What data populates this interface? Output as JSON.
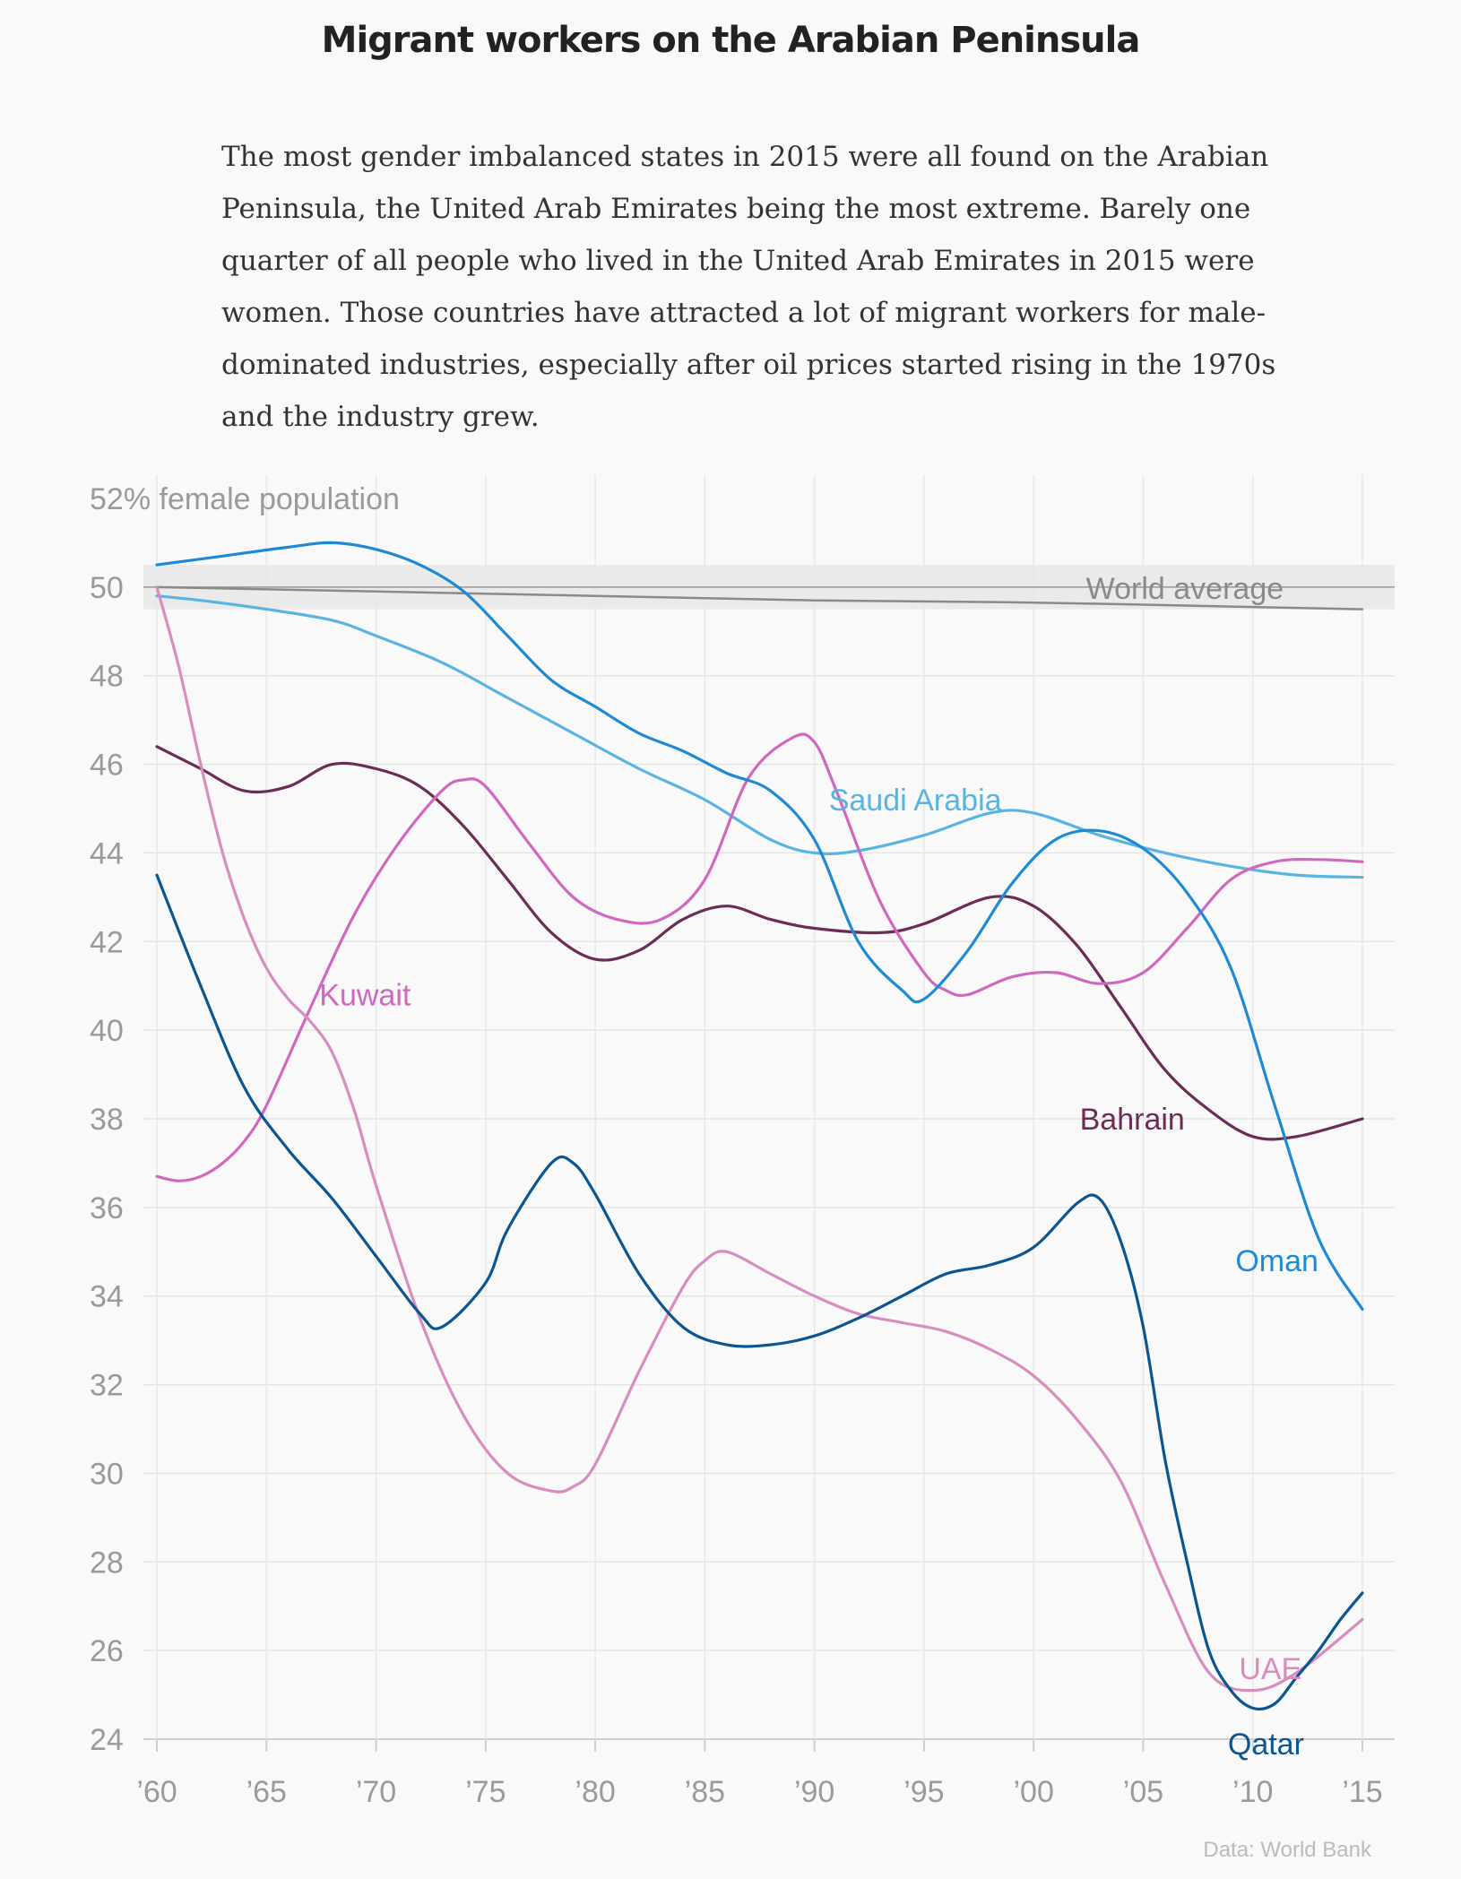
{
  "chart_data": {
    "type": "line",
    "title": "Migrant workers on the Arabian Peninsula",
    "subtitle": "The most gender imbalanced states in 2015 were all found on the Arabian Peninsula, the United Arab Emirates being the most extreme. Barely one quarter of all people who lived in the United Arab Emirates in 2015 were women. Those countries have attracted a lot of migrant workers for male-dominated industries, especially after oil prices started rising in the 1970s and the industry grew.",
    "ylabel": "52% female population",
    "source": "Data: World Bank",
    "ylim": [
      24,
      52
    ],
    "xlim": [
      1960,
      2015
    ],
    "y_ticks": [
      "52% female population",
      "50",
      "48",
      "46",
      "44",
      "42",
      "40",
      "38",
      "36",
      "34",
      "32",
      "30",
      "28",
      "26",
      "24"
    ],
    "x_ticks": [
      "’60",
      "’65",
      "’70",
      "’75",
      "’80",
      "’85",
      "’90",
      "’95",
      "’00",
      "’05",
      "’10",
      "’15"
    ],
    "grid": true,
    "band": {
      "label": "World average",
      "from": 49.5,
      "to": 50.5
    },
    "colors": {
      "world": "#8a8a8a",
      "saudi": "#5ab4e2",
      "oman": "#1f8ad4",
      "kuwait": "#d068c0",
      "bahrain": "#6b2d55",
      "qatar": "#0b5591",
      "uae": "#d88dbf"
    },
    "series": [
      {
        "key": "world",
        "name": "World average",
        "color": "#8a8a8a",
        "x": [
          1960,
          1970,
          1980,
          1990,
          2000,
          2010,
          2015
        ],
        "y": [
          50.0,
          49.9,
          49.8,
          49.7,
          49.65,
          49.55,
          49.5
        ]
      },
      {
        "key": "saudi",
        "name": "Saudi Arabia",
        "color": "#5ab4e2",
        "x": [
          1960,
          1962,
          1965,
          1968,
          1970,
          1973,
          1976,
          1979,
          1982,
          1985,
          1988,
          1990,
          1992,
          1995,
          1998,
          2000,
          2003,
          2006,
          2009,
          2012,
          2015
        ],
        "y": [
          49.8,
          49.7,
          49.5,
          49.25,
          48.9,
          48.3,
          47.5,
          46.7,
          45.9,
          45.2,
          44.3,
          44.0,
          44.05,
          44.4,
          44.9,
          44.9,
          44.4,
          44.0,
          43.7,
          43.5,
          43.45
        ]
      },
      {
        "key": "oman",
        "name": "Oman",
        "color": "#1f8ad4",
        "x": [
          1960,
          1963,
          1966,
          1968,
          1970,
          1972,
          1974,
          1976,
          1978,
          1980,
          1982,
          1984,
          1986,
          1988,
          1990,
          1992,
          1994,
          1995,
          1997,
          1999,
          2001,
          2003,
          2005,
          2007,
          2009,
          2011,
          2013,
          2015
        ],
        "y": [
          50.5,
          50.7,
          50.9,
          51.0,
          50.85,
          50.5,
          49.9,
          48.9,
          47.9,
          47.3,
          46.7,
          46.3,
          45.8,
          45.4,
          44.3,
          42.0,
          40.9,
          40.7,
          41.8,
          43.3,
          44.3,
          44.5,
          44.1,
          43.1,
          41.4,
          38.3,
          35.3,
          33.7
        ]
      },
      {
        "key": "kuwait",
        "name": "Kuwait",
        "color": "#d068c0",
        "x": [
          1960,
          1961,
          1962,
          1963,
          1964,
          1965,
          1967,
          1969,
          1971,
          1973,
          1974,
          1975,
          1977,
          1979,
          1981,
          1983,
          1985,
          1987,
          1989,
          1990,
          1991,
          1993,
          1995,
          1996,
          1997,
          1999,
          2001,
          2003,
          2005,
          2007,
          2009,
          2011,
          2013,
          2015
        ],
        "y": [
          36.7,
          36.6,
          36.7,
          37.0,
          37.5,
          38.3,
          40.5,
          42.6,
          44.2,
          45.4,
          45.65,
          45.5,
          44.2,
          43.0,
          42.5,
          42.5,
          43.4,
          45.7,
          46.6,
          46.5,
          45.4,
          42.9,
          41.3,
          40.9,
          40.8,
          41.2,
          41.3,
          41.05,
          41.3,
          42.3,
          43.4,
          43.8,
          43.85,
          43.8
        ]
      },
      {
        "key": "bahrain",
        "name": "Bahrain",
        "color": "#6b2d55",
        "x": [
          1960,
          1962,
          1964,
          1966,
          1968,
          1970,
          1972,
          1974,
          1976,
          1978,
          1980,
          1982,
          1984,
          1986,
          1988,
          1990,
          1993,
          1995,
          1998,
          2000,
          2002,
          2004,
          2006,
          2008,
          2010,
          2012,
          2015
        ],
        "y": [
          46.4,
          45.9,
          45.4,
          45.5,
          46.0,
          45.9,
          45.5,
          44.6,
          43.4,
          42.2,
          41.6,
          41.8,
          42.5,
          42.8,
          42.5,
          42.3,
          42.2,
          42.4,
          43.0,
          42.8,
          41.9,
          40.5,
          39.1,
          38.2,
          37.6,
          37.6,
          38.0
        ]
      },
      {
        "key": "qatar",
        "name": "Qatar",
        "color": "#0b5591",
        "x": [
          1960,
          1962,
          1964,
          1966,
          1968,
          1970,
          1972,
          1973,
          1975,
          1976,
          1978,
          1979,
          1980,
          1982,
          1984,
          1986,
          1988,
          1990,
          1992,
          1994,
          1996,
          1998,
          2000,
          2002,
          2003,
          2004,
          2005,
          2006,
          2007,
          2008,
          2009,
          2010,
          2011,
          2012,
          2013,
          2014,
          2015
        ],
        "y": [
          43.5,
          41.0,
          38.7,
          37.3,
          36.2,
          34.9,
          33.6,
          33.3,
          34.3,
          35.5,
          37.0,
          37.0,
          36.3,
          34.5,
          33.3,
          32.9,
          32.9,
          33.1,
          33.5,
          34.0,
          34.5,
          34.7,
          35.1,
          36.1,
          36.2,
          35.2,
          33.3,
          30.3,
          28.0,
          26.0,
          25.1,
          24.7,
          24.8,
          25.4,
          26.0,
          26.7,
          27.3
        ]
      },
      {
        "key": "uae",
        "name": "UAE",
        "color": "#d88dbf",
        "x": [
          1960,
          1961,
          1962,
          1963,
          1964,
          1965,
          1966,
          1967,
          1968,
          1969,
          1970,
          1972,
          1974,
          1976,
          1978,
          1979,
          1980,
          1982,
          1984,
          1985,
          1986,
          1988,
          1990,
          1992,
          1994,
          1996,
          1998,
          2000,
          2002,
          2004,
          2006,
          2008,
          2010,
          2012,
          2015
        ],
        "y": [
          50.0,
          48.2,
          46.0,
          44.0,
          42.5,
          41.4,
          40.7,
          40.2,
          39.5,
          38.2,
          36.5,
          33.5,
          31.3,
          30.0,
          29.6,
          29.7,
          30.2,
          32.3,
          34.2,
          34.8,
          35.0,
          34.5,
          34.0,
          33.6,
          33.4,
          33.2,
          32.8,
          32.2,
          31.2,
          29.8,
          27.5,
          25.5,
          25.1,
          25.5,
          26.7
        ]
      }
    ],
    "labels": [
      {
        "key": "saudi",
        "text": "Saudi Arabia"
      },
      {
        "key": "kuwait",
        "text": "Kuwait"
      },
      {
        "key": "bahrain",
        "text": "Bahrain"
      },
      {
        "key": "oman",
        "text": "Oman"
      },
      {
        "key": "uae",
        "text": "UAE"
      },
      {
        "key": "qatar",
        "text": "Qatar"
      },
      {
        "key": "world",
        "text": "World average"
      }
    ]
  }
}
